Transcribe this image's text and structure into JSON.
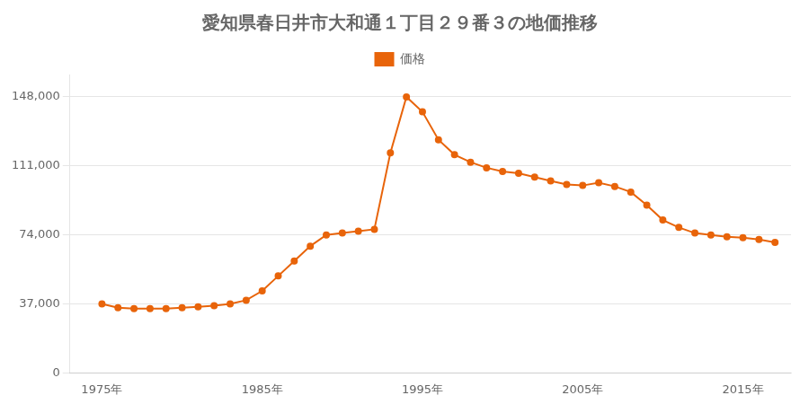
{
  "chart_data": {
    "type": "line",
    "title": "愛知県春日井市大和通１丁目２９番３の地価推移",
    "x": [
      1975,
      1976,
      1977,
      1978,
      1979,
      1980,
      1981,
      1982,
      1983,
      1984,
      1985,
      1986,
      1987,
      1988,
      1989,
      1990,
      1991,
      1992,
      1993,
      1994,
      1995,
      1996,
      1997,
      1998,
      1999,
      2000,
      2001,
      2002,
      2003,
      2004,
      2005,
      2006,
      2007,
      2008,
      2009,
      2010,
      2011,
      2012,
      2013,
      2014,
      2015,
      2016,
      2017
    ],
    "series": [
      {
        "name": "価格",
        "color": "#E8640A",
        "marker": "circle",
        "values": [
          37000,
          35000,
          34500,
          34500,
          34500,
          35000,
          35500,
          36000,
          37000,
          39000,
          44000,
          52000,
          60000,
          68000,
          74000,
          75000,
          76000,
          77000,
          118000,
          148000,
          140000,
          125000,
          117000,
          113000,
          110000,
          108000,
          107000,
          105000,
          103000,
          101000,
          100500,
          102000,
          100000,
          97000,
          90000,
          82000,
          78000,
          75000,
          74000,
          73000,
          72500,
          71500,
          70000
        ]
      }
    ],
    "xlim": [
      1973,
      2018
    ],
    "xticks": [
      {
        "value": 1975,
        "label": "1975年"
      },
      {
        "value": 1985,
        "label": "1985年"
      },
      {
        "value": 1995,
        "label": "1995年"
      },
      {
        "value": 2005,
        "label": "2005年"
      },
      {
        "value": 2015,
        "label": "2015年"
      }
    ],
    "ylim": [
      0,
      160000
    ],
    "yticks": [
      0,
      {
        "value": 37000,
        "label": "37,000"
      },
      {
        "value": 74000,
        "label": "74,000"
      },
      {
        "value": 111000,
        "label": "111,000"
      },
      {
        "value": 148000,
        "label": "148,000"
      }
    ],
    "grid": "y",
    "legend": "top"
  }
}
